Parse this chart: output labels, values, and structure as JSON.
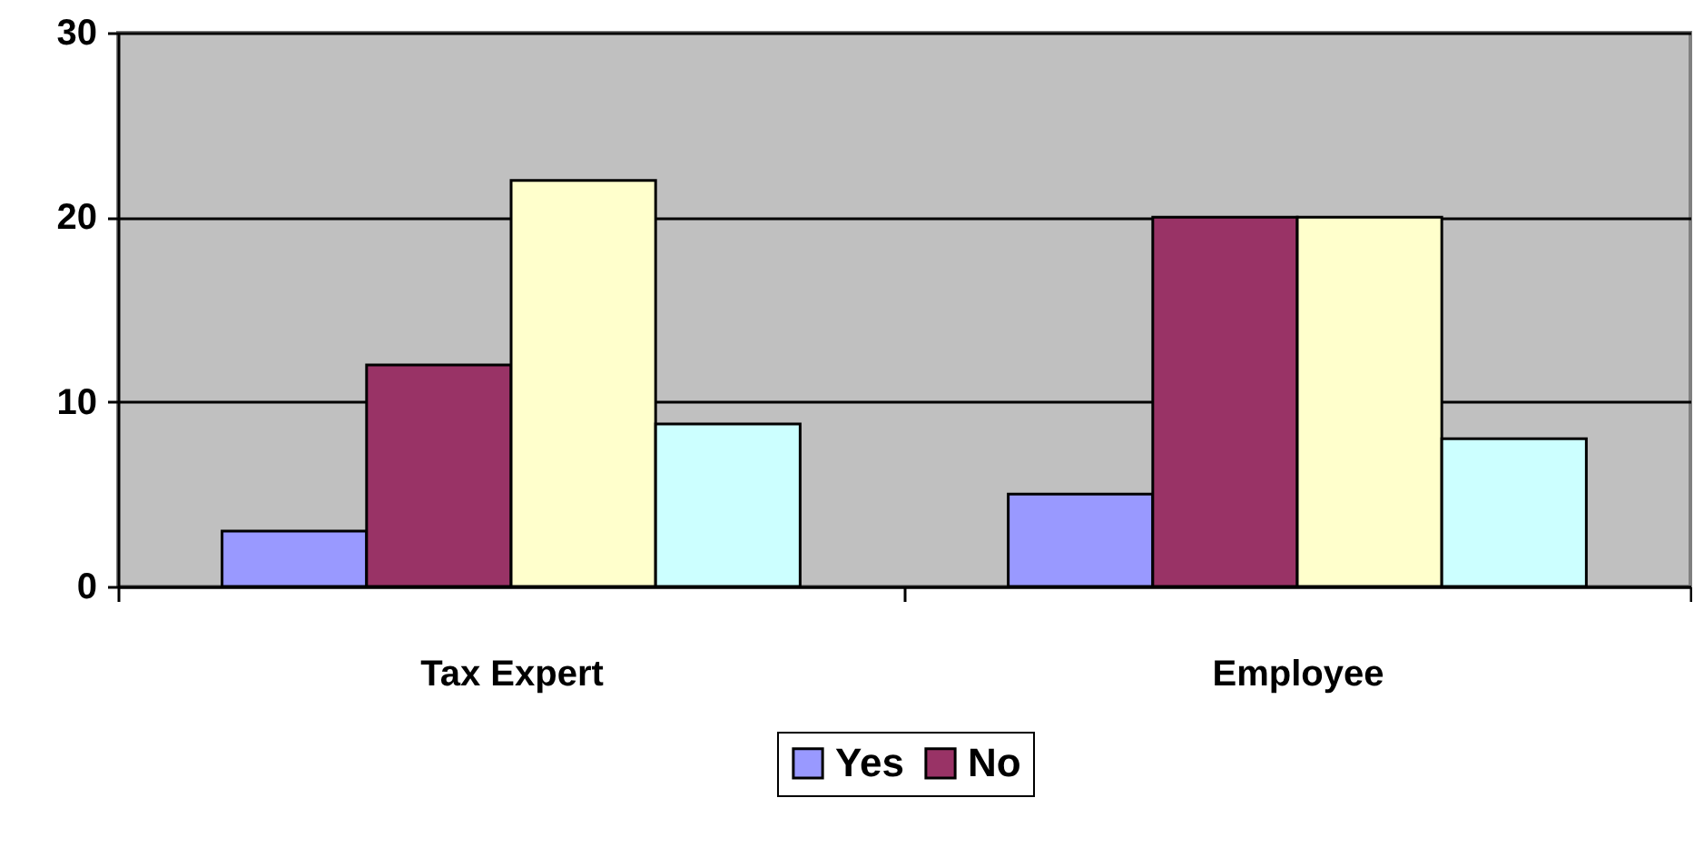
{
  "chart_data": {
    "type": "bar",
    "categories": [
      "Tax Expert",
      "Employee"
    ],
    "series": [
      {
        "name": "Yes",
        "color": "#9999ff",
        "values": [
          3,
          5
        ]
      },
      {
        "name": "No",
        "color": "#993366",
        "values": [
          12,
          20
        ]
      },
      {
        "color": "#ffffcc",
        "values": [
          22,
          20
        ]
      },
      {
        "color": "#ccffff",
        "values": [
          8.8,
          8
        ]
      }
    ],
    "ylim": [
      0,
      30
    ],
    "yticks": [
      0,
      10,
      20,
      30
    ],
    "grid": "y",
    "legend": "bottom"
  }
}
